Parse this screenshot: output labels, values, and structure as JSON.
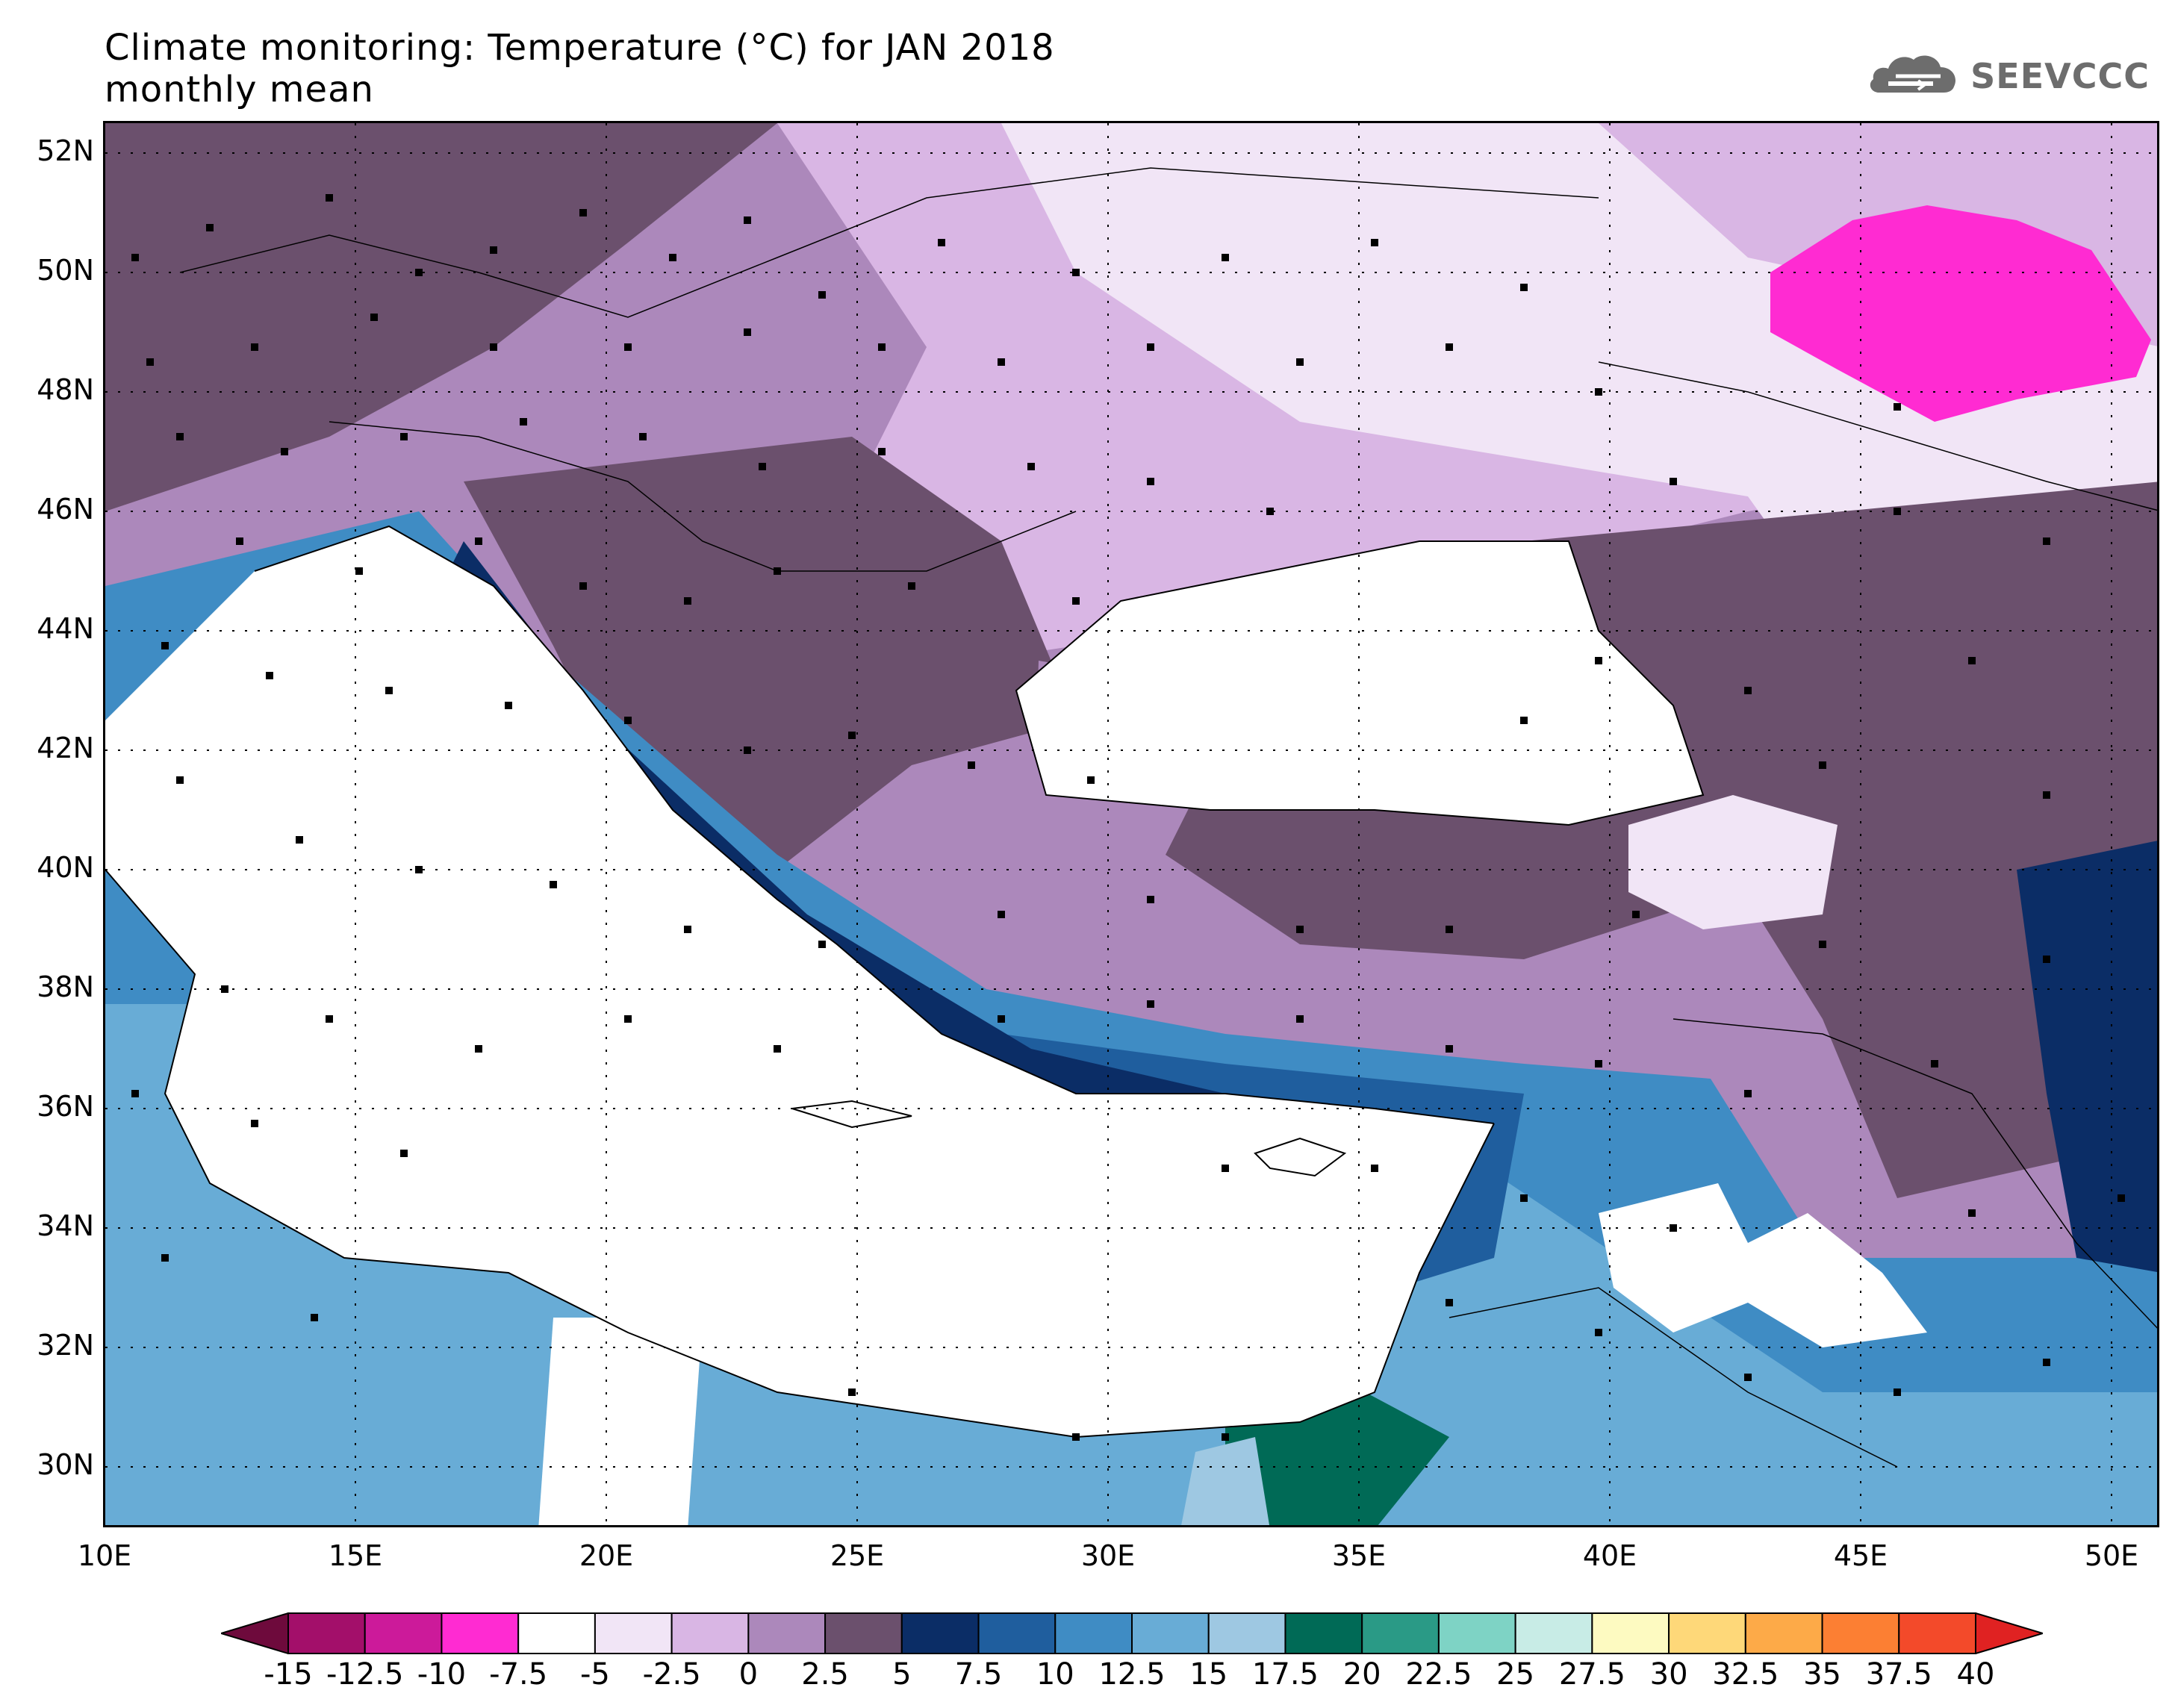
{
  "title": {
    "line1": "Climate monitoring: Temperature (°C) for JAN 2018",
    "line2": "monthly mean"
  },
  "logo": {
    "text": "SEEVCCC",
    "icon": "cloud-icon"
  },
  "map": {
    "lon_range": [
      10,
      51
    ],
    "lat_range": [
      29,
      52.6
    ],
    "lat_labels": [
      "52N",
      "50N",
      "48N",
      "46N",
      "44N",
      "42N",
      "40N",
      "38N",
      "36N",
      "34N",
      "32N",
      "30N"
    ],
    "lon_labels": [
      "10E",
      "15E",
      "20E",
      "25E",
      "30E",
      "35E",
      "40E",
      "45E",
      "50E"
    ],
    "gridlines": "dotted",
    "stations": "black squares"
  },
  "legend": {
    "labels": [
      "-15",
      "-12.5",
      "-10",
      "-7.5",
      "-5",
      "-2.5",
      "0",
      "2.5",
      "5",
      "7.5",
      "10",
      "12.5",
      "15",
      "17.5",
      "20",
      "22.5",
      "25",
      "27.5",
      "30",
      "32.5",
      "35",
      "37.5",
      "40"
    ],
    "colors": [
      "#6e0a3c",
      "#a30f6a",
      "#cc1a9a",
      "#ff2bd2",
      "#ffffff",
      "#f1e5f6",
      "#d9b6e4",
      "#ac88bb",
      "#6b506d",
      "#0b2d66",
      "#1f5e9e",
      "#3f8cc4",
      "#68acd6",
      "#9ec8e2",
      "#006a56",
      "#2a9a86",
      "#7ed3c5",
      "#c8ece6",
      "#fdfac1",
      "#fed879",
      "#fdaa48",
      "#fc7f33",
      "#f34a2a",
      "#e02222"
    ]
  }
}
